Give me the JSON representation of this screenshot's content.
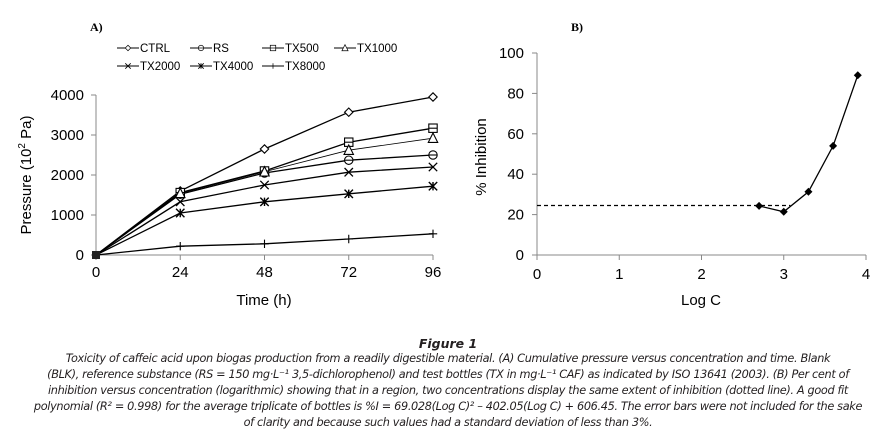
{
  "chart_data": [
    {
      "type": "line",
      "panel_label": "A)",
      "xlabel": "Time (h)",
      "ylabel": "Pressure (10 2 Pa)",
      "ylabel_parts": {
        "prefix": "Pressure (10",
        "sup": "2",
        "suffix": " Pa)"
      },
      "x": [
        0,
        24,
        48,
        72,
        96
      ],
      "x_ticks": [
        "0",
        "24",
        "48",
        "72",
        "96"
      ],
      "y_ticks": [
        "0",
        "1000",
        "2000",
        "3000",
        "4000"
      ],
      "xlim": [
        0,
        96
      ],
      "ylim": [
        0,
        4000
      ],
      "grid": false,
      "legend_position": "top",
      "series": [
        {
          "name": "CTRL",
          "marker": "diamond",
          "values": [
            0,
            1600,
            2650,
            3570,
            3950
          ]
        },
        {
          "name": "RS",
          "marker": "circle",
          "values": [
            0,
            1520,
            2050,
            2370,
            2500
          ]
        },
        {
          "name": "TX500",
          "marker": "square",
          "values": [
            0,
            1560,
            2100,
            2820,
            3170
          ]
        },
        {
          "name": "TX1000",
          "marker": "triangle",
          "values": [
            0,
            1540,
            2080,
            2620,
            2920
          ]
        },
        {
          "name": "TX2000",
          "marker": "x",
          "values": [
            0,
            1330,
            1750,
            2070,
            2200
          ]
        },
        {
          "name": "TX4000",
          "marker": "asterisk",
          "values": [
            0,
            1050,
            1330,
            1530,
            1720
          ]
        },
        {
          "name": "TX8000",
          "marker": "plus",
          "values": [
            0,
            220,
            280,
            400,
            530
          ]
        }
      ]
    },
    {
      "type": "line",
      "panel_label": "B)",
      "xlabel": "Log C",
      "ylabel": "% Inhibition",
      "x_ticks": [
        "0",
        "1",
        "2",
        "3",
        "4"
      ],
      "y_ticks": [
        "0",
        "20",
        "40",
        "60",
        "80",
        "100"
      ],
      "xlim": [
        0,
        4
      ],
      "ylim": [
        0,
        100
      ],
      "grid": false,
      "series": [
        {
          "name": "% Inhibition",
          "marker": "filled-diamond",
          "x": [
            2.7,
            3.0,
            3.3,
            3.6,
            3.9
          ],
          "values": [
            24.3,
            21.4,
            31.3,
            54,
            89
          ]
        }
      ],
      "reference_line": {
        "style": "dashed",
        "y": 24.5,
        "x_range": [
          0,
          3.08
        ]
      }
    }
  ],
  "caption": {
    "title": "Figure 1",
    "lines": [
      "Toxicity of caffeic acid upon biogas production from a readily digestible material. (A) Cumulative pressure versus concentration and time. Blank",
      "(BLK), reference substance (RS = 150 mg·L⁻¹ 3,5-dichlorophenol) and test bottles (TX in mg·L⁻¹ CAF) as indicated by ISO 13641 (2003). (B) Per cent of",
      "inhibition versus concentration (logarithmic) showing that in a region, two concentrations display the same extent of inhibition (dotted line). A good fit",
      "polynomial (R² = 0.998) for the average triplicate of bottles is %I = 69.028(Log C)² – 402.05(Log C) + 606.45. The error bars were not included for the sake",
      "of clarity and because such values had a standard deviation of less than 3%."
    ]
  }
}
